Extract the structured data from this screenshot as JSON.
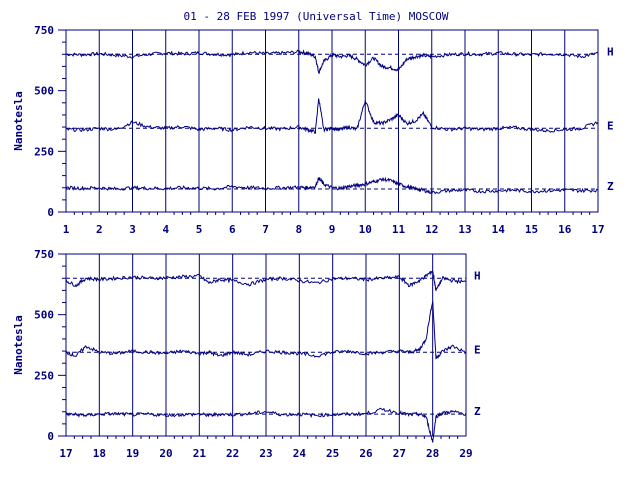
{
  "title": "01 - 28 FEB 1997 (Universal Time) MOSCOW",
  "colors": {
    "ink": "#00007f",
    "background": "#ffffff"
  },
  "chart_data": [
    {
      "type": "line",
      "ylabel": "Nanotesla",
      "ylim": [
        0,
        750
      ],
      "yticks": [
        0,
        250,
        500,
        750
      ],
      "xlim": [
        1,
        17
      ],
      "xticks": [
        "1",
        "2",
        "3",
        "4",
        "5",
        "6",
        "7",
        "8",
        "9",
        "10",
        "11",
        "12",
        "13",
        "14",
        "15",
        "16",
        "17"
      ],
      "grid": "vertical lines at each day",
      "series": [
        {
          "name": "H",
          "baseline": 650,
          "x": [
            1,
            1.5,
            2,
            2.5,
            3,
            3.5,
            4,
            4.5,
            5,
            5.5,
            6,
            6.5,
            7,
            7.5,
            8,
            8.25,
            8.5,
            8.6,
            8.75,
            9,
            9.25,
            9.5,
            9.75,
            10,
            10.25,
            10.5,
            10.75,
            11,
            11.25,
            11.5,
            11.75,
            12,
            12.5,
            13,
            13.5,
            14,
            14.5,
            15,
            15.5,
            16,
            16.5,
            17
          ],
          "values": [
            650,
            648,
            652,
            646,
            640,
            650,
            655,
            652,
            656,
            650,
            648,
            658,
            652,
            655,
            660,
            655,
            640,
            575,
            620,
            648,
            640,
            645,
            630,
            605,
            635,
            600,
            595,
            585,
            630,
            640,
            645,
            640,
            648,
            652,
            650,
            655,
            650,
            648,
            652,
            650,
            640,
            655
          ]
        },
        {
          "name": "E",
          "baseline": 345,
          "x": [
            1,
            1.5,
            2,
            2.5,
            3,
            3.5,
            4,
            4.5,
            5,
            5.5,
            6,
            6.5,
            7,
            7.5,
            8,
            8.25,
            8.5,
            8.6,
            8.75,
            9,
            9.25,
            9.5,
            9.75,
            10,
            10.25,
            10.5,
            10.75,
            11,
            11.25,
            11.5,
            11.75,
            12,
            12.5,
            13,
            13.5,
            14,
            14.5,
            15,
            15.5,
            16,
            16.5,
            17
          ],
          "values": [
            340,
            338,
            345,
            340,
            370,
            350,
            345,
            352,
            340,
            345,
            338,
            350,
            345,
            342,
            350,
            340,
            330,
            470,
            340,
            345,
            340,
            350,
            340,
            460,
            370,
            365,
            380,
            400,
            365,
            375,
            405,
            350,
            340,
            345,
            340,
            345,
            348,
            340,
            335,
            340,
            345,
            370
          ]
        },
        {
          "name": "Z",
          "baseline": 95,
          "x": [
            1,
            1.5,
            2,
            2.5,
            3,
            3.5,
            4,
            4.5,
            5,
            5.5,
            6,
            6.5,
            7,
            7.5,
            8,
            8.25,
            8.5,
            8.6,
            8.75,
            9,
            9.25,
            9.5,
            9.75,
            10,
            10.25,
            10.5,
            10.75,
            11,
            11.25,
            11.5,
            11.75,
            12,
            12.5,
            13,
            13.5,
            14,
            14.5,
            15,
            15.5,
            16,
            16.5,
            17
          ],
          "values": [
            100,
            98,
            100,
            95,
            100,
            98,
            97,
            100,
            98,
            96,
            105,
            100,
            98,
            100,
            102,
            100,
            105,
            140,
            115,
            100,
            98,
            105,
            110,
            115,
            125,
            135,
            130,
            115,
            105,
            95,
            90,
            80,
            88,
            90,
            85,
            88,
            90,
            85,
            88,
            90,
            88,
            90
          ]
        }
      ]
    },
    {
      "type": "line",
      "ylabel": "Nanotesla",
      "ylim": [
        0,
        750
      ],
      "yticks": [
        0,
        250,
        500,
        750
      ],
      "xlim": [
        17,
        29
      ],
      "xticks": [
        "17",
        "18",
        "19",
        "20",
        "21",
        "22",
        "23",
        "24",
        "25",
        "26",
        "27",
        "28",
        "29"
      ],
      "grid": "vertical lines at each day",
      "series": [
        {
          "name": "H",
          "baseline": 650,
          "x": [
            17,
            17.3,
            17.6,
            18,
            18.5,
            19,
            19.5,
            20,
            20.5,
            21,
            21.3,
            21.6,
            22,
            22.5,
            23,
            23.5,
            24,
            24.5,
            25,
            25.5,
            26,
            26.5,
            27,
            27.3,
            27.6,
            27.8,
            28,
            28.1,
            28.3,
            28.6,
            29
          ],
          "values": [
            640,
            620,
            650,
            645,
            650,
            655,
            650,
            652,
            656,
            660,
            630,
            645,
            640,
            625,
            645,
            650,
            640,
            630,
            648,
            650,
            645,
            650,
            655,
            620,
            640,
            660,
            680,
            600,
            650,
            640,
            635
          ]
        },
        {
          "name": "E",
          "baseline": 345,
          "x": [
            17,
            17.3,
            17.6,
            18,
            18.5,
            19,
            19.5,
            20,
            20.5,
            21,
            21.3,
            21.6,
            22,
            22.5,
            23,
            23.5,
            24,
            24.5,
            25,
            25.5,
            26,
            26.5,
            27,
            27.3,
            27.6,
            27.8,
            28,
            28.1,
            28.3,
            28.6,
            29
          ],
          "values": [
            345,
            330,
            370,
            345,
            340,
            350,
            345,
            340,
            350,
            340,
            345,
            330,
            345,
            335,
            350,
            345,
            340,
            330,
            345,
            350,
            340,
            345,
            350,
            345,
            355,
            400,
            560,
            320,
            350,
            370,
            345
          ]
        },
        {
          "name": "Z",
          "baseline": 90,
          "x": [
            17,
            17.3,
            17.6,
            18,
            18.5,
            19,
            19.5,
            20,
            20.5,
            21,
            21.3,
            21.6,
            22,
            22.5,
            23,
            23.5,
            24,
            24.5,
            25,
            25.5,
            26,
            26.5,
            27,
            27.3,
            27.6,
            27.8,
            28,
            28.1,
            28.3,
            28.6,
            29
          ],
          "values": [
            90,
            88,
            85,
            90,
            92,
            88,
            90,
            85,
            88,
            90,
            85,
            90,
            88,
            92,
            100,
            88,
            90,
            85,
            88,
            90,
            92,
            110,
            95,
            88,
            90,
            80,
            -25,
            80,
            95,
            100,
            90
          ]
        }
      ]
    }
  ]
}
